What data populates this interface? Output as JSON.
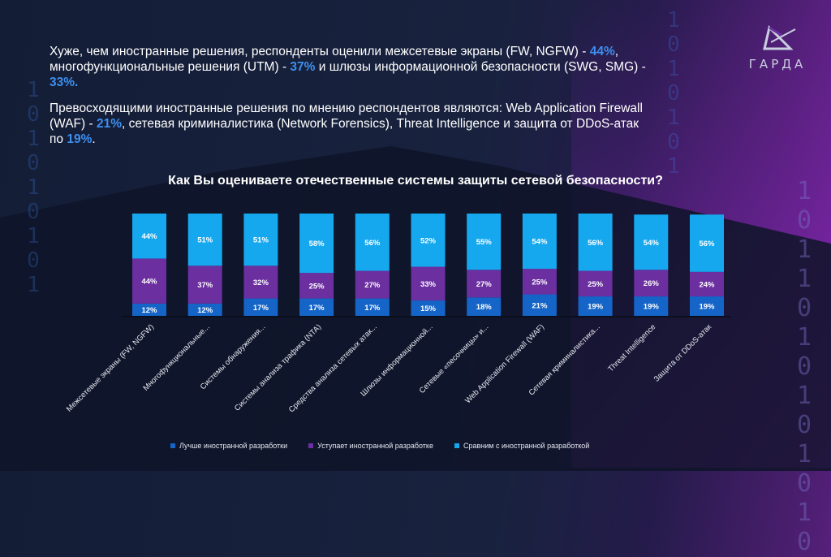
{
  "logo": {
    "text": "ГАРДА"
  },
  "intro": {
    "p1": [
      {
        "t": "Хуже, чем иностранные решения, респонденты оценили межсетевые экраны (FW, NGFW) - ",
        "hl": false
      },
      {
        "t": "44%",
        "hl": true
      },
      {
        "t": ", многофункциональные решения (UTM) - ",
        "hl": false
      },
      {
        "t": "37%",
        "hl": true
      },
      {
        "t": " и шлюзы информационной безопасности (SWG, SMG) - ",
        "hl": false
      },
      {
        "t": "33%.",
        "hl": true
      }
    ],
    "p2": [
      {
        "t": "Превосходящими иностранные решения по мнению респондентов являются: Web Application Firewall (WAF) - ",
        "hl": false
      },
      {
        "t": "21%",
        "hl": true
      },
      {
        "t": ", сетевая криминалистика (Network Forensics), Threat Intelligence и защита от DDoS-атак по ",
        "hl": false
      },
      {
        "t": "19%",
        "hl": true
      },
      {
        "t": ".",
        "hl": false
      }
    ]
  },
  "binary": {
    "left": "1\n0\n1\n0\n1\n0\n1\n0\n1",
    "mid": "1\n0\n1\n0\n1\n0\n1",
    "right": "1\n0\n1\n1\n0\n1\n0\n1\n0\n1\n0\n1\n0"
  },
  "colors": {
    "better": "#1565c8",
    "worse": "#6b2fa0",
    "equal": "#16a8ee"
  },
  "chart_data": {
    "type": "bar",
    "stacked": true,
    "percent_stacked": true,
    "title": "Как Вы оцениваете отечественные системы защиты сетевой безопасности?",
    "categories": [
      "Межсетевые экраны (FW, NGFW)",
      "Многофункциональные...",
      "Системы обнаружения...",
      "Системы анализа трафика (NTA)",
      "Средства анализа сетевых атак...",
      "Шлюзы информационной...",
      "Сетевые «песочницы» и...",
      "Web Application Firewall (WAF)",
      "Сетевая криминалистика...",
      "Threat Intelligence",
      "Защита от DDoS-атак"
    ],
    "series": [
      {
        "name": "Лучше иностранной разработки",
        "values": [
          12,
          12,
          17,
          17,
          17,
          15,
          18,
          21,
          19,
          19,
          19
        ]
      },
      {
        "name": "Уступает иностранной разработке",
        "values": [
          44,
          37,
          32,
          25,
          27,
          33,
          27,
          25,
          25,
          26,
          24
        ]
      },
      {
        "name": "Сравним с иностранной разработкой",
        "values": [
          44,
          51,
          51,
          58,
          56,
          52,
          55,
          54,
          56,
          54,
          56
        ]
      }
    ],
    "data_label_format": "{v}%",
    "ylim": [
      0,
      100
    ],
    "legend": "bottom",
    "grid": false
  }
}
